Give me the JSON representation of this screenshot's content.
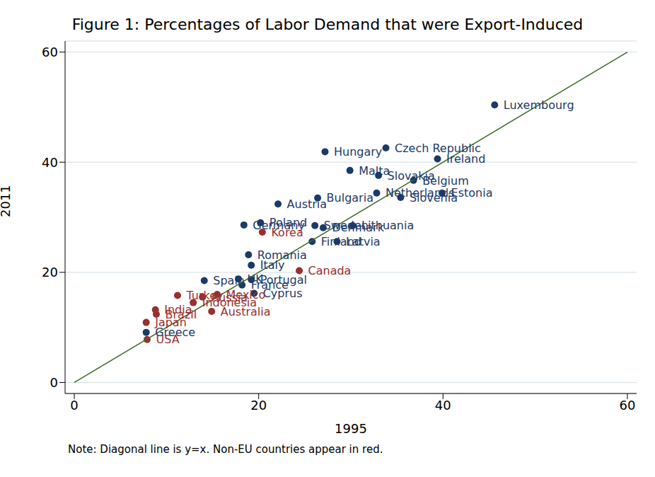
{
  "chart_data": {
    "type": "scatter",
    "title": "Figure 1: Percentages of Labor Demand that were Export-Induced",
    "x_label": "1995",
    "y_label": "2011",
    "note": "Note: Diagonal line is y=x. Non-EU countries appear in red.",
    "xlim": [
      -1,
      61
    ],
    "ylim": [
      -2,
      62
    ],
    "xticks": [
      0,
      20,
      40,
      60
    ],
    "yticks": [
      0,
      20,
      40,
      60
    ],
    "grid": "y",
    "series": [
      {
        "type": "scatter",
        "marker": "circle",
        "color": "#1c3a68",
        "labels": [
          "Luxembourg",
          "Czech Republic",
          "Hungary",
          "Ireland",
          "Malta",
          "Slovakia",
          "Belgium",
          "Netherlands",
          "Estonia",
          "Slovenia",
          "Bulgaria",
          "Austria",
          "Poland",
          "Germany",
          "Sweden",
          "Lithuania",
          "Denmark",
          "Finland",
          "Latvia",
          "Romania",
          "Italy",
          "Spain",
          "UK",
          "Portugal",
          "France",
          "Cyprus",
          "Greece"
        ],
        "x": [
          45.6,
          33.8,
          27.2,
          39.4,
          29.9,
          33.0,
          36.8,
          32.8,
          39.9,
          35.4,
          26.4,
          22.1,
          20.2,
          18.4,
          26.1,
          30.2,
          27.0,
          25.8,
          28.5,
          18.9,
          19.2,
          14.1,
          17.8,
          19.2,
          18.2,
          19.5,
          7.8
        ],
        "values": [
          50.4,
          42.6,
          41.9,
          40.6,
          38.5,
          37.6,
          36.7,
          34.4,
          34.4,
          33.6,
          33.5,
          32.4,
          29.0,
          28.6,
          28.5,
          28.5,
          28.1,
          25.6,
          25.6,
          23.2,
          21.3,
          18.5,
          18.8,
          18.7,
          17.7,
          16.2,
          9.1
        ]
      },
      {
        "type": "scatter",
        "marker": "circle",
        "color": "#9a2f2f",
        "labels": [
          "Korea",
          "Canada",
          "Turkey",
          "Russia",
          "Mexico",
          "Indonesia",
          "Australia",
          "India",
          "Brazil",
          "Japan",
          "USA"
        ],
        "x": [
          20.4,
          24.4,
          11.2,
          13.9,
          15.5,
          12.9,
          14.9,
          8.8,
          8.9,
          7.8,
          7.9
        ],
        "values": [
          27.3,
          20.3,
          15.8,
          15.5,
          16.0,
          14.5,
          12.9,
          13.2,
          12.4,
          10.9,
          7.8
        ]
      },
      {
        "type": "line",
        "color": "#3d6b21",
        "x": [
          0,
          60
        ],
        "values": [
          0,
          60
        ]
      }
    ]
  }
}
